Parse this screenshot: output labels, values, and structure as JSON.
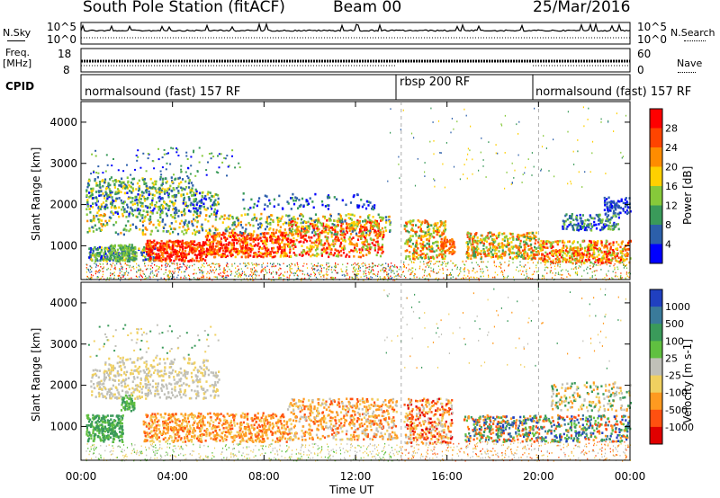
{
  "header": {
    "station": "South Pole Station (fitACF)",
    "beam": "Beam 00",
    "date": "25/Mar/2016"
  },
  "side_labels": {
    "nsky": "N.Sky",
    "nsearch": "N.Search",
    "freq_line1": "Freq.",
    "freq_line2": "[MHz]",
    "nave": "Nave",
    "cpid": "CPID"
  },
  "strips": {
    "noise_ticks_left": [
      "10^5",
      "10^0"
    ],
    "noise_ticks_right": [
      "10^5",
      "10^0"
    ],
    "freq_ticks": [
      "18",
      "8"
    ],
    "nave_ticks": [
      "60",
      "0"
    ]
  },
  "modes": [
    {
      "label": "normalsound (fast) 157 RF"
    },
    {
      "label": "rbsp 200 RF"
    },
    {
      "label": "normalsound (fast) 157 RF"
    }
  ],
  "chart_data": [
    {
      "type": "heatmap",
      "quantity": "Power",
      "ylabel": "Slant Range [km]",
      "xlabel": "Time UT",
      "x_ticks": [
        "00:00",
        "04:00",
        "08:00",
        "12:00",
        "16:00",
        "20:00",
        "00:00"
      ],
      "y_ticks": [
        "1000",
        "2000",
        "3000",
        "4000"
      ],
      "ylim": [
        180,
        4500
      ],
      "xlim_hours": [
        0,
        24
      ],
      "mode_boundaries_hours": [
        14,
        20
      ],
      "colorbar_label": "Power [dB]",
      "colorbar_ticks": [
        "28",
        "24",
        "20",
        "16",
        "12",
        "8",
        "4"
      ],
      "colorbar_colors": [
        "#ff0000",
        "#ff4400",
        "#ff8c00",
        "#ffd000",
        "#86c93a",
        "#3a9a5a",
        "#2c5faa",
        "#0000ff"
      ]
    },
    {
      "type": "heatmap",
      "quantity": "Velocity",
      "ylabel": "Slant Range [km]",
      "xlabel": "Time UT",
      "x_ticks": [
        "00:00",
        "04:00",
        "08:00",
        "12:00",
        "16:00",
        "20:00",
        "00:00"
      ],
      "y_ticks": [
        "1000",
        "2000",
        "3000",
        "4000"
      ],
      "ylim": [
        180,
        4500
      ],
      "xlim_hours": [
        0,
        24
      ],
      "mode_boundaries_hours": [
        14,
        20
      ],
      "colorbar_label": "Velocity [m s-1]",
      "colorbar_ticks": [
        "1000",
        "500",
        "100",
        "25",
        "-25",
        "-100",
        "-500",
        "-1000"
      ],
      "colorbar_colors": [
        "#2040c0",
        "#3a7a9a",
        "#3a9a5a",
        "#60c040",
        "#c0c0b8",
        "#f0d060",
        "#ff9a20",
        "#ff5010",
        "#e00000"
      ]
    }
  ],
  "x_axis_title": "Time UT"
}
